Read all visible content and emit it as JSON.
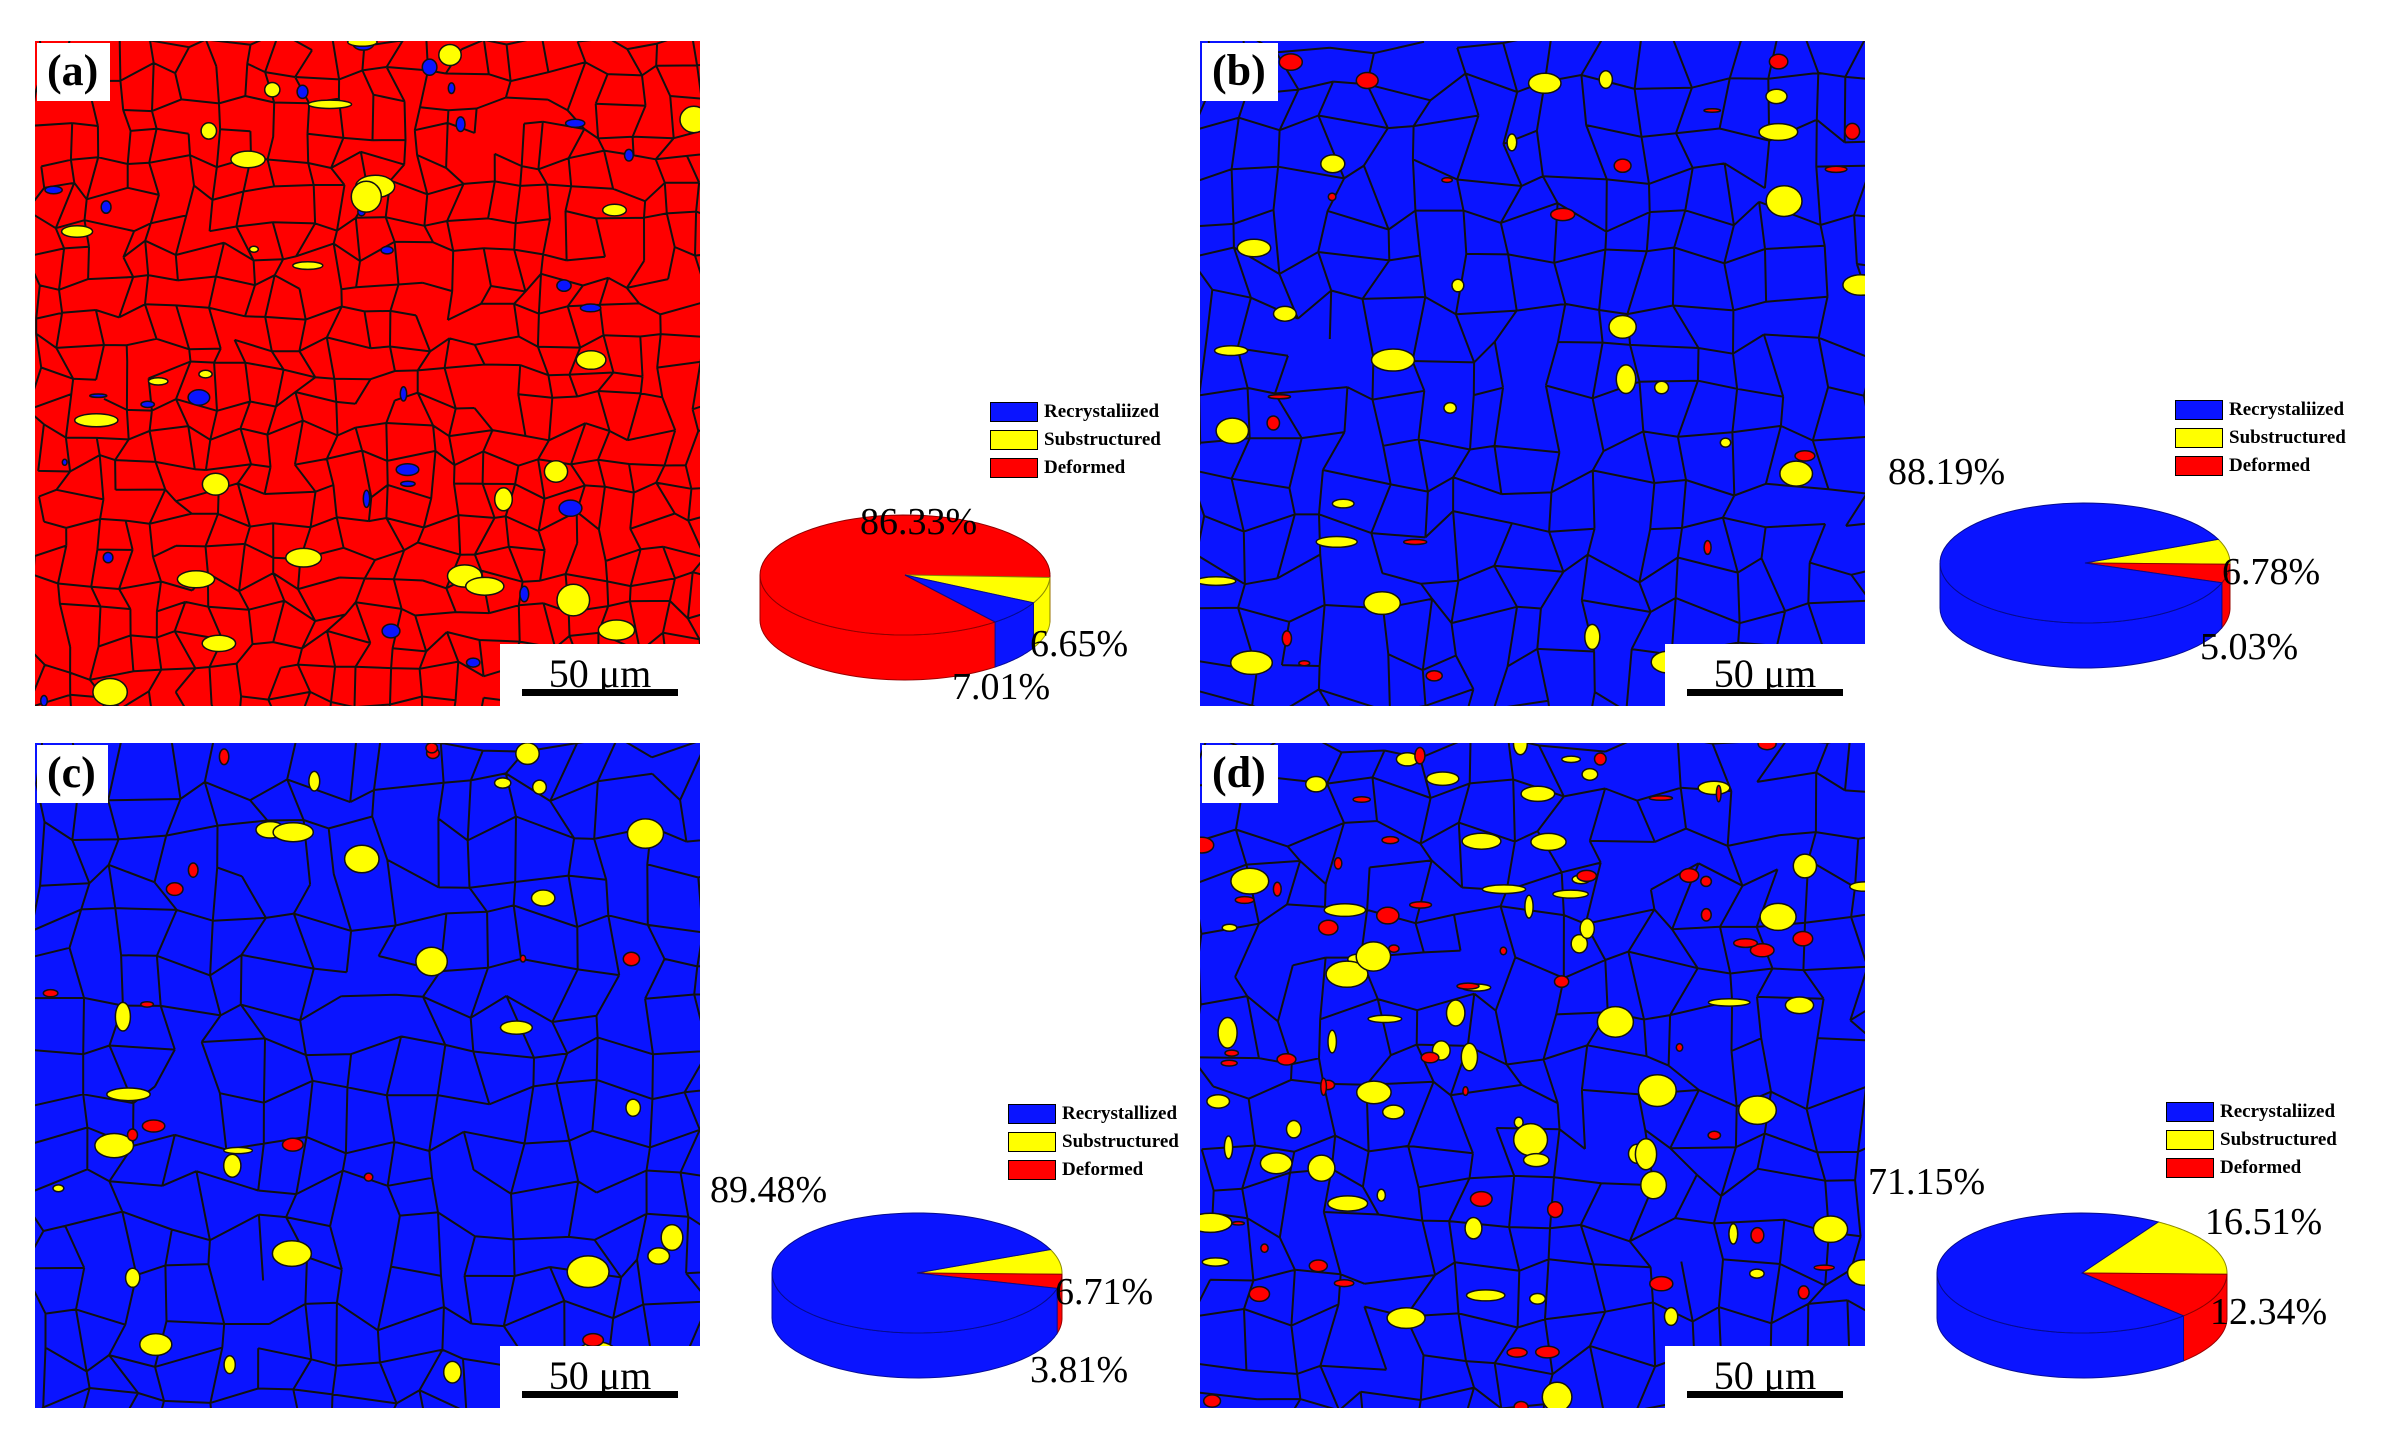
{
  "colors": {
    "recrystallized": "#0a14ff",
    "substructured": "#ffff00",
    "deformed": "#ff0000"
  },
  "panels": [
    {
      "label": "(a)",
      "scale_bar": "50 μm",
      "legend": [
        "Recrystaliized",
        "Substructured",
        "Deformed"
      ],
      "dominant": "deformed",
      "pct_texts": {
        "recrystallized": "6.65%",
        "substructured": "7.01%",
        "deformed": "86.33%"
      }
    },
    {
      "label": "(b)",
      "scale_bar": "50 μm",
      "legend": [
        "Recrystaliized",
        "Substructured",
        "Deformed"
      ],
      "dominant": "recrystallized",
      "pct_texts": {
        "recrystallized": "88.19%",
        "substructured": "6.78%",
        "deformed": "5.03%"
      }
    },
    {
      "label": "(c)",
      "scale_bar": "50 μm",
      "legend": [
        "Recrystallized",
        "Substructured",
        "Deformed"
      ],
      "dominant": "recrystallized",
      "pct_texts": {
        "recrystallized": "89.48%",
        "substructured": "6.71%",
        "deformed": "3.81%"
      }
    },
    {
      "label": "(d)",
      "scale_bar": "50 μm",
      "legend": [
        "Recrystaliized",
        "Substructured",
        "Deformed"
      ],
      "dominant": "recrystallized",
      "pct_texts": {
        "recrystallized": "71.15%",
        "substructured": "16.51%",
        "deformed": "12.34%"
      }
    }
  ],
  "chart_data": [
    {
      "type": "pie",
      "title": "(a)",
      "categories": [
        "Recrystaliized",
        "Substructured",
        "Deformed"
      ],
      "values": [
        6.65,
        7.01,
        86.33
      ]
    },
    {
      "type": "pie",
      "title": "(b)",
      "categories": [
        "Recrystaliized",
        "Substructured",
        "Deformed"
      ],
      "values": [
        88.19,
        6.78,
        5.03
      ]
    },
    {
      "type": "pie",
      "title": "(c)",
      "categories": [
        "Recrystallized",
        "Substructured",
        "Deformed"
      ],
      "values": [
        89.48,
        6.71,
        3.81
      ]
    },
    {
      "type": "pie",
      "title": "(d)",
      "categories": [
        "Recrystaliized",
        "Substructured",
        "Deformed"
      ],
      "values": [
        71.15,
        16.51,
        12.34
      ]
    }
  ]
}
